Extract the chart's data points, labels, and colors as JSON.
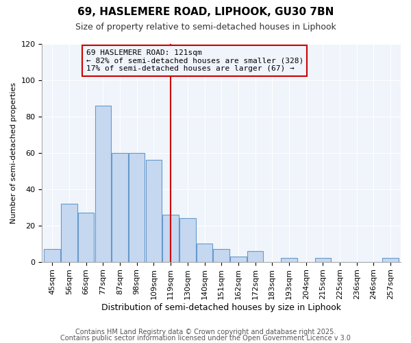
{
  "title": "69, HASLEMERE ROAD, LIPHOOK, GU30 7BN",
  "subtitle": "Size of property relative to semi-detached houses in Liphook",
  "xlabel": "Distribution of semi-detached houses by size in Liphook",
  "ylabel": "Number of semi-detached properties",
  "background_color": "#ffffff",
  "plot_bg_color": "#f0f4fb",
  "bar_color": "#c5d8f0",
  "bar_edge_color": "#6699cc",
  "grid_color": "#ffffff",
  "annotation_box_edge": "#cc0000",
  "vline_color": "#cc0000",
  "annotation_line1": "69 HASLEMERE ROAD: 121sqm",
  "annotation_line2": "← 82% of semi-detached houses are smaller (328)",
  "annotation_line3": "17% of semi-detached houses are larger (67) →",
  "footer1": "Contains HM Land Registry data © Crown copyright and database right 2025.",
  "footer2": "Contains public sector information licensed under the Open Government Licence v 3.0",
  "categories": [
    "45sqm",
    "56sqm",
    "66sqm",
    "77sqm",
    "87sqm",
    "98sqm",
    "109sqm",
    "119sqm",
    "130sqm",
    "140sqm",
    "151sqm",
    "162sqm",
    "172sqm",
    "183sqm",
    "193sqm",
    "204sqm",
    "215sqm",
    "225sqm",
    "236sqm",
    "246sqm",
    "257sqm"
  ],
  "values": [
    7,
    32,
    27,
    86,
    60,
    60,
    56,
    26,
    24,
    10,
    7,
    3,
    6,
    0,
    2,
    0,
    2,
    0,
    0,
    0,
    2
  ],
  "vline_x": 7,
  "ylim": [
    0,
    120
  ],
  "yticks": [
    0,
    20,
    40,
    60,
    80,
    100,
    120
  ],
  "title_fontsize": 11,
  "subtitle_fontsize": 9,
  "xlabel_fontsize": 9,
  "ylabel_fontsize": 8,
  "tick_fontsize": 8,
  "footer_fontsize": 7
}
